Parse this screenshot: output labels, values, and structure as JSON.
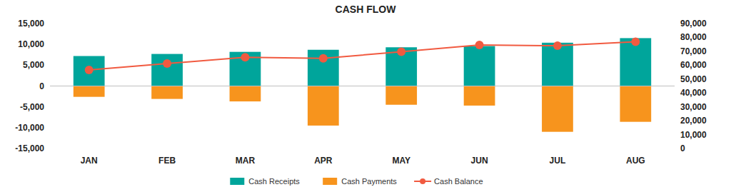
{
  "chart_data": {
    "type": "bar",
    "title": "CASH FLOW",
    "categories": [
      "JAN",
      "FEB",
      "MAR",
      "APR",
      "MAY",
      "JUN",
      "JUL",
      "AUG"
    ],
    "stacked": true,
    "grid": false,
    "legend": "bottom",
    "series": [
      {
        "name": "Cash Receipts",
        "color": "#00a59b",
        "values": [
          7200,
          7700,
          8200,
          8700,
          9300,
          9600,
          10400,
          11500
        ]
      },
      {
        "name": "Cash Payments",
        "color": "#f7941d",
        "values": [
          -2600,
          -3100,
          -3700,
          -9500,
          -4500,
          -4700,
          -11000,
          -8600
        ]
      },
      {
        "name": "Cash Balance",
        "color": "#f15a40",
        "type": "line",
        "marker": "circle",
        "axis": "y2",
        "values": [
          56600,
          61200,
          65700,
          64900,
          69700,
          74600,
          74000,
          76900
        ]
      }
    ],
    "ylim": [
      -15000,
      15000
    ],
    "yticks": [
      {
        "value": -15000,
        "label": "-15,000"
      },
      {
        "value": -10000,
        "label": "-10,000"
      },
      {
        "value": -5000,
        "label": "-5,000"
      },
      0,
      {
        "value": 5000,
        "label": "5,000"
      },
      {
        "value": 10000,
        "label": "10,000"
      },
      {
        "value": 15000,
        "label": "15,000"
      }
    ],
    "y2lim": [
      0,
      90000
    ],
    "y2ticks": [
      0,
      {
        "value": 10000,
        "label": "10,000"
      },
      {
        "value": 20000,
        "label": "20,000"
      },
      {
        "value": 30000,
        "label": "30,000"
      },
      {
        "value": 40000,
        "label": "40,000"
      },
      {
        "value": 50000,
        "label": "50,000"
      },
      {
        "value": 60000,
        "label": "60,000"
      },
      {
        "value": 70000,
        "label": "70,000"
      },
      {
        "value": 80000,
        "label": "80,000"
      },
      {
        "value": 90000,
        "label": "90,000"
      }
    ]
  }
}
